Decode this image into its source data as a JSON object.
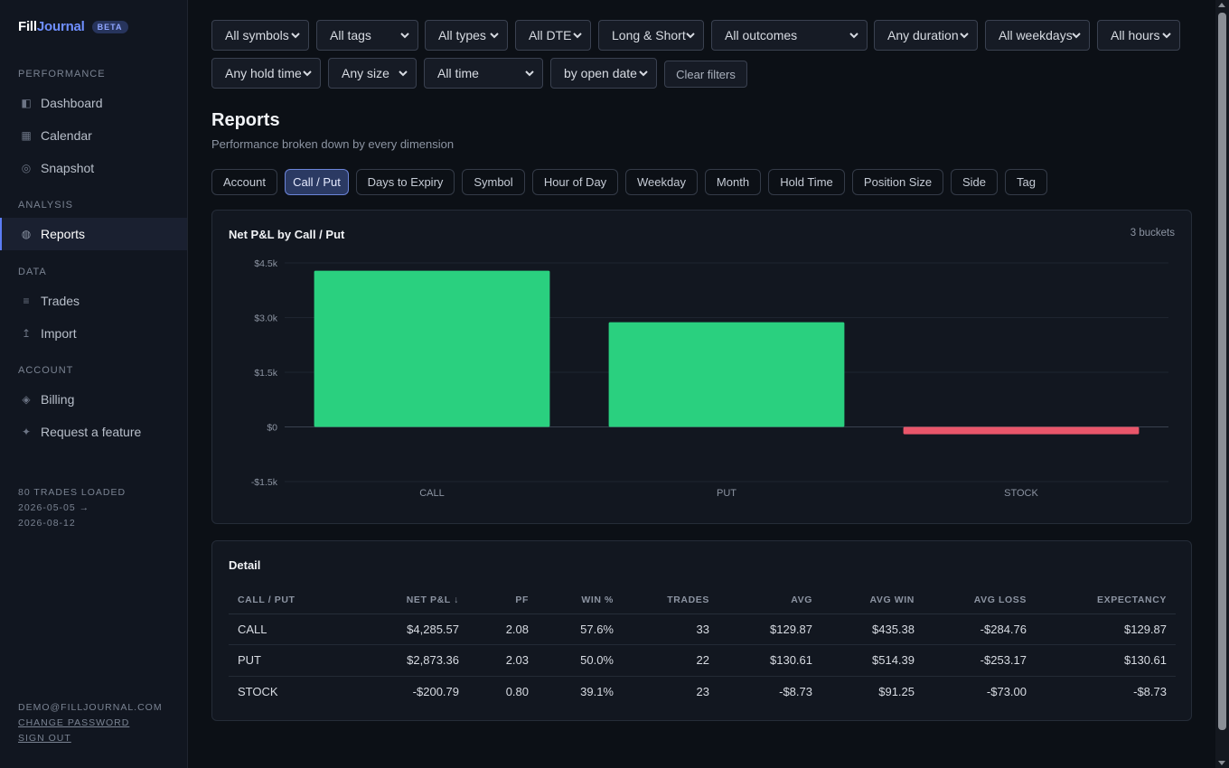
{
  "brand": {
    "name_a": "Fill",
    "name_b": "Journal",
    "badge": "BETA"
  },
  "sidebar": {
    "sections": [
      {
        "label": "PERFORMANCE",
        "items": [
          {
            "label": "Dashboard",
            "icon": "dashboard-icon",
            "glyph": "◧"
          },
          {
            "label": "Calendar",
            "icon": "calendar-icon",
            "glyph": "▦"
          },
          {
            "label": "Snapshot",
            "icon": "snapshot-icon",
            "glyph": "◎"
          }
        ]
      },
      {
        "label": "ANALYSIS",
        "items": [
          {
            "label": "Reports",
            "icon": "reports-icon",
            "glyph": "◍",
            "active": true
          }
        ]
      },
      {
        "label": "DATA",
        "items": [
          {
            "label": "Trades",
            "icon": "trades-icon",
            "glyph": "≡"
          },
          {
            "label": "Import",
            "icon": "import-icon",
            "glyph": "↥"
          }
        ]
      },
      {
        "label": "ACCOUNT",
        "items": [
          {
            "label": "Billing",
            "icon": "billing-icon",
            "glyph": "◈"
          },
          {
            "label": "Request a feature",
            "icon": "sparkle-icon",
            "glyph": "✦"
          }
        ]
      }
    ],
    "status": {
      "trades_loaded": "80 TRADES LOADED",
      "date_from": "2026-05-05 →",
      "date_to": "2026-08-12"
    },
    "account": {
      "email": "DEMO@FILLJOURNAL.COM",
      "change_password": "CHANGE PASSWORD",
      "sign_out": "SIGN OUT"
    }
  },
  "filters": {
    "row1": [
      "All symbols",
      "All tags",
      "All types",
      "All DTE",
      "Long & Short",
      "All outcomes",
      "Any duration",
      "All weekdays",
      "All hours"
    ],
    "row2": [
      "Any hold time",
      "Any size",
      "All time",
      "by open date"
    ],
    "clear_label": "Clear filters"
  },
  "page": {
    "title": "Reports",
    "subtitle": "Performance broken down by every dimension"
  },
  "tabs": [
    "Account",
    "Call / Put",
    "Days to Expiry",
    "Symbol",
    "Hour of Day",
    "Weekday",
    "Month",
    "Hold Time",
    "Position Size",
    "Side",
    "Tag"
  ],
  "active_tab": "Call / Put",
  "chart_card": {
    "title": "Net P&L by Call / Put",
    "buckets": "3 buckets"
  },
  "chart_data": {
    "type": "bar",
    "title": "Net P&L by Call / Put",
    "categories": [
      "CALL",
      "PUT",
      "STOCK"
    ],
    "values": [
      4285.57,
      2873.36,
      -200.79
    ],
    "ylim": [
      -1500,
      4500
    ],
    "yticks": [
      4500,
      3000,
      1500,
      0,
      -1500
    ],
    "ytick_labels": [
      "$4.5k",
      "$3.0k",
      "$1.5k",
      "$0",
      "-$1.5k"
    ],
    "grid": true,
    "colors": {
      "positive": "#2ad07f",
      "negative": "#e9566a"
    }
  },
  "detail": {
    "title": "Detail",
    "columns": [
      "CALL / PUT",
      "NET P&L ↓",
      "PF",
      "WIN %",
      "TRADES",
      "AVG",
      "AVG WIN",
      "AVG LOSS",
      "EXPECTANCY"
    ],
    "rows": [
      [
        "CALL",
        "$4,285.57",
        "2.08",
        "57.6%",
        "33",
        "$129.87",
        "$435.38",
        "-$284.76",
        "$129.87"
      ],
      [
        "PUT",
        "$2,873.36",
        "2.03",
        "50.0%",
        "22",
        "$130.61",
        "$514.39",
        "-$253.17",
        "$130.61"
      ],
      [
        "STOCK",
        "-$200.79",
        "0.80",
        "39.1%",
        "23",
        "-$8.73",
        "$91.25",
        "-$73.00",
        "-$8.73"
      ]
    ]
  }
}
